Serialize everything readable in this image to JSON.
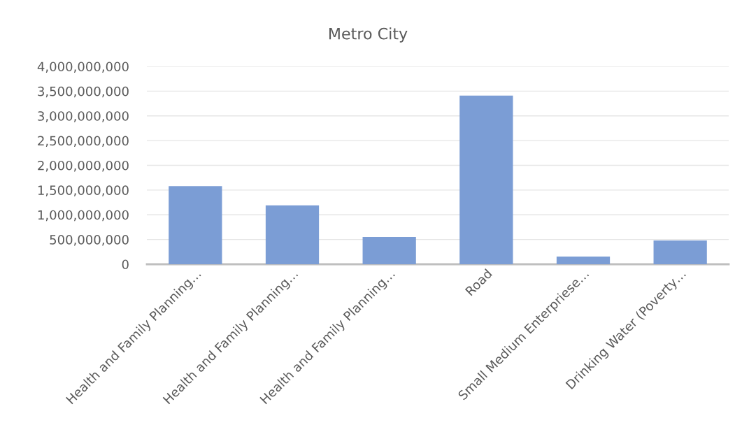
{
  "chart_data": {
    "type": "bar",
    "title": "Metro City",
    "categories": [
      "Health and Family Planning…",
      "Health and Family Planning…",
      "Health and Family Planning…",
      "Road",
      "Small Medium Enterpriese…",
      "Drinking Water (Poverty…"
    ],
    "values": [
      1580000000,
      1190000000,
      550000000,
      3410000000,
      155000000,
      480000000
    ],
    "color": "#7b9dd5",
    "ylim": [
      0,
      4000000000
    ],
    "yticks": [
      {
        "value": 0,
        "label": "0"
      },
      {
        "value": 500000000,
        "label": "500,000,000"
      },
      {
        "value": 1000000000,
        "label": "1,000,000,000"
      },
      {
        "value": 1500000000,
        "label": "1,500,000,000"
      },
      {
        "value": 2000000000,
        "label": "2,000,000,000"
      },
      {
        "value": 2500000000,
        "label": "2,500,000,000"
      },
      {
        "value": 3000000000,
        "label": "3,000,000,000"
      },
      {
        "value": 3500000000,
        "label": "3,500,000,000"
      },
      {
        "value": 4000000000,
        "label": "4,000,000,000"
      }
    ],
    "grid": "y"
  }
}
